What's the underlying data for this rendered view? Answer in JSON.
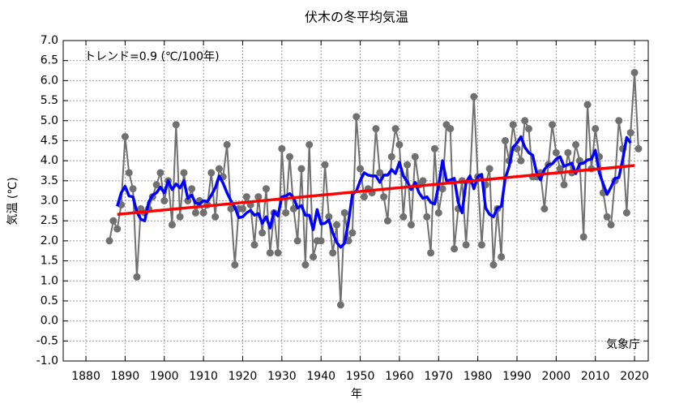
{
  "chart_data": {
    "type": "line",
    "title": "伏木の冬平均気温",
    "x_label": "年",
    "y_label": "気温 (℃)",
    "annotations": [
      "トレンド=0.9 (℃/100年)",
      "気象庁"
    ],
    "x": [
      1886,
      1887,
      1888,
      1889,
      1890,
      1891,
      1892,
      1893,
      1894,
      1895,
      1896,
      1897,
      1898,
      1899,
      1900,
      1901,
      1902,
      1903,
      1904,
      1905,
      1906,
      1907,
      1908,
      1909,
      1910,
      1911,
      1912,
      1913,
      1914,
      1915,
      1916,
      1917,
      1918,
      1919,
      1920,
      1921,
      1922,
      1923,
      1924,
      1925,
      1926,
      1927,
      1928,
      1929,
      1930,
      1931,
      1932,
      1933,
      1934,
      1935,
      1936,
      1937,
      1938,
      1939,
      1940,
      1941,
      1942,
      1943,
      1944,
      1945,
      1946,
      1947,
      1948,
      1949,
      1950,
      1951,
      1952,
      1953,
      1954,
      1955,
      1956,
      1957,
      1958,
      1959,
      1960,
      1961,
      1962,
      1963,
      1964,
      1965,
      1966,
      1967,
      1968,
      1969,
      1970,
      1971,
      1972,
      1973,
      1974,
      1975,
      1976,
      1977,
      1978,
      1979,
      1980,
      1981,
      1982,
      1983,
      1984,
      1985,
      1986,
      1987,
      1988,
      1989,
      1990,
      1991,
      1992,
      1993,
      1994,
      1995,
      1996,
      1997,
      1998,
      1999,
      2000,
      2001,
      2002,
      2003,
      2004,
      2005,
      2006,
      2007,
      2008,
      2009,
      2010,
      2011,
      2012,
      2013,
      2014,
      2015,
      2016,
      2017,
      2018,
      2019,
      2020,
      2021
    ],
    "series": [
      {
        "color": "#707070",
        "markers": true,
        "values": [
          2.0,
          2.5,
          2.3,
          2.9,
          4.6,
          3.7,
          3.3,
          1.1,
          2.8,
          2.7,
          2.8,
          3.1,
          3.4,
          3.7,
          3.0,
          3.5,
          2.4,
          4.9,
          2.6,
          3.7,
          3.0,
          3.3,
          2.7,
          3.0,
          2.7,
          2.9,
          3.7,
          2.6,
          3.8,
          3.6,
          4.4,
          2.8,
          1.4,
          2.8,
          2.8,
          3.1,
          2.9,
          1.9,
          3.1,
          2.2,
          3.3,
          1.7,
          2.7,
          1.7,
          4.3,
          2.7,
          4.1,
          2.8,
          2.0,
          3.8,
          1.4,
          4.4,
          1.6,
          2.0,
          2.0,
          3.9,
          2.6,
          1.7,
          2.4,
          0.4,
          2.7,
          2.0,
          2.2,
          5.1,
          3.8,
          3.1,
          3.3,
          3.2,
          4.8,
          3.7,
          3.1,
          2.5,
          4.1,
          4.8,
          4.4,
          2.6,
          3.9,
          2.4,
          4.1,
          3.4,
          3.5,
          2.6,
          1.7,
          4.3,
          2.7,
          3.3,
          4.9,
          4.8,
          1.8,
          2.8,
          3.5,
          1.9,
          3.5,
          5.6,
          3.6,
          1.9,
          3.4,
          3.8,
          1.4,
          2.8,
          1.6,
          4.5,
          4.0,
          4.9,
          4.3,
          4.0,
          5.0,
          4.8,
          3.6,
          3.6,
          3.7,
          2.8,
          3.9,
          4.9,
          4.2,
          3.8,
          3.4,
          4.2,
          3.7,
          4.4,
          4.0,
          2.1,
          5.4,
          3.8,
          4.8,
          4.1,
          3.2,
          2.6,
          2.4,
          3.5,
          5.0,
          4.3,
          2.7,
          4.7,
          6.2,
          4.3
        ]
      },
      {
        "color": "#0000ff",
        "markers": false,
        "values": [
          null,
          null,
          2.86,
          3.2,
          3.36,
          3.12,
          3.1,
          2.72,
          2.54,
          2.5,
          2.96,
          3.14,
          3.2,
          3.34,
          3.2,
          3.5,
          3.28,
          3.42,
          3.32,
          3.5,
          3.06,
          3.14,
          2.94,
          2.92,
          3.0,
          2.98,
          3.14,
          3.32,
          3.62,
          3.44,
          3.2,
          3.0,
          2.84,
          2.58,
          2.6,
          2.7,
          2.76,
          2.64,
          2.68,
          2.44,
          2.6,
          2.32,
          2.74,
          2.62,
          3.1,
          3.12,
          3.18,
          3.08,
          2.82,
          2.88,
          2.64,
          2.64,
          2.28,
          2.78,
          2.42,
          2.44,
          2.52,
          2.2,
          1.96,
          1.84,
          1.94,
          2.48,
          3.16,
          3.24,
          3.5,
          3.7,
          3.64,
          3.62,
          3.62,
          3.46,
          3.64,
          3.64,
          3.78,
          3.68,
          3.96,
          3.62,
          3.48,
          3.28,
          3.46,
          3.2,
          3.06,
          3.1,
          2.96,
          2.92,
          3.38,
          4.0,
          3.5,
          3.52,
          3.56,
          2.96,
          2.7,
          3.46,
          3.62,
          3.3,
          3.6,
          3.66,
          2.82,
          2.66,
          2.6,
          2.82,
          2.86,
          3.56,
          3.86,
          4.34,
          4.44,
          4.6,
          4.34,
          4.2,
          4.14,
          3.7,
          3.52,
          3.78,
          3.9,
          3.92,
          4.04,
          4.1,
          3.86,
          3.9,
          3.94,
          3.68,
          3.92,
          3.94,
          4.02,
          4.04,
          4.26,
          3.7,
          3.42,
          3.16,
          3.34,
          3.56,
          3.58,
          4.04,
          4.58,
          4.44,
          null,
          null
        ]
      }
    ],
    "trend": {
      "color": "#ff0000",
      "x": [
        1888,
        2020
      ],
      "values": [
        2.66,
        3.88
      ]
    },
    "xlim": [
      1874.2,
      2023.5
    ],
    "ylim": [
      -1.0,
      7.0
    ],
    "xticks": [
      1880,
      1890,
      1900,
      1910,
      1920,
      1930,
      1940,
      1950,
      1960,
      1970,
      1980,
      1990,
      2000,
      2010,
      2020
    ],
    "yticks": [
      {
        "value": -1,
        "label": "-1.0"
      },
      -0.5,
      {
        "value": 0,
        "label": "0.0"
      },
      0.5,
      {
        "value": 1,
        "label": "1.0"
      },
      1.5,
      {
        "value": 2,
        "label": "2.0"
      },
      2.5,
      {
        "value": 3,
        "label": "3.0"
      },
      3.5,
      {
        "value": 4,
        "label": "4.0"
      },
      4.5,
      {
        "value": 5,
        "label": "5.0"
      },
      5.5,
      {
        "value": 6,
        "label": "6.0"
      },
      6.5,
      {
        "value": 7,
        "label": "7.0"
      }
    ],
    "grid": true
  }
}
